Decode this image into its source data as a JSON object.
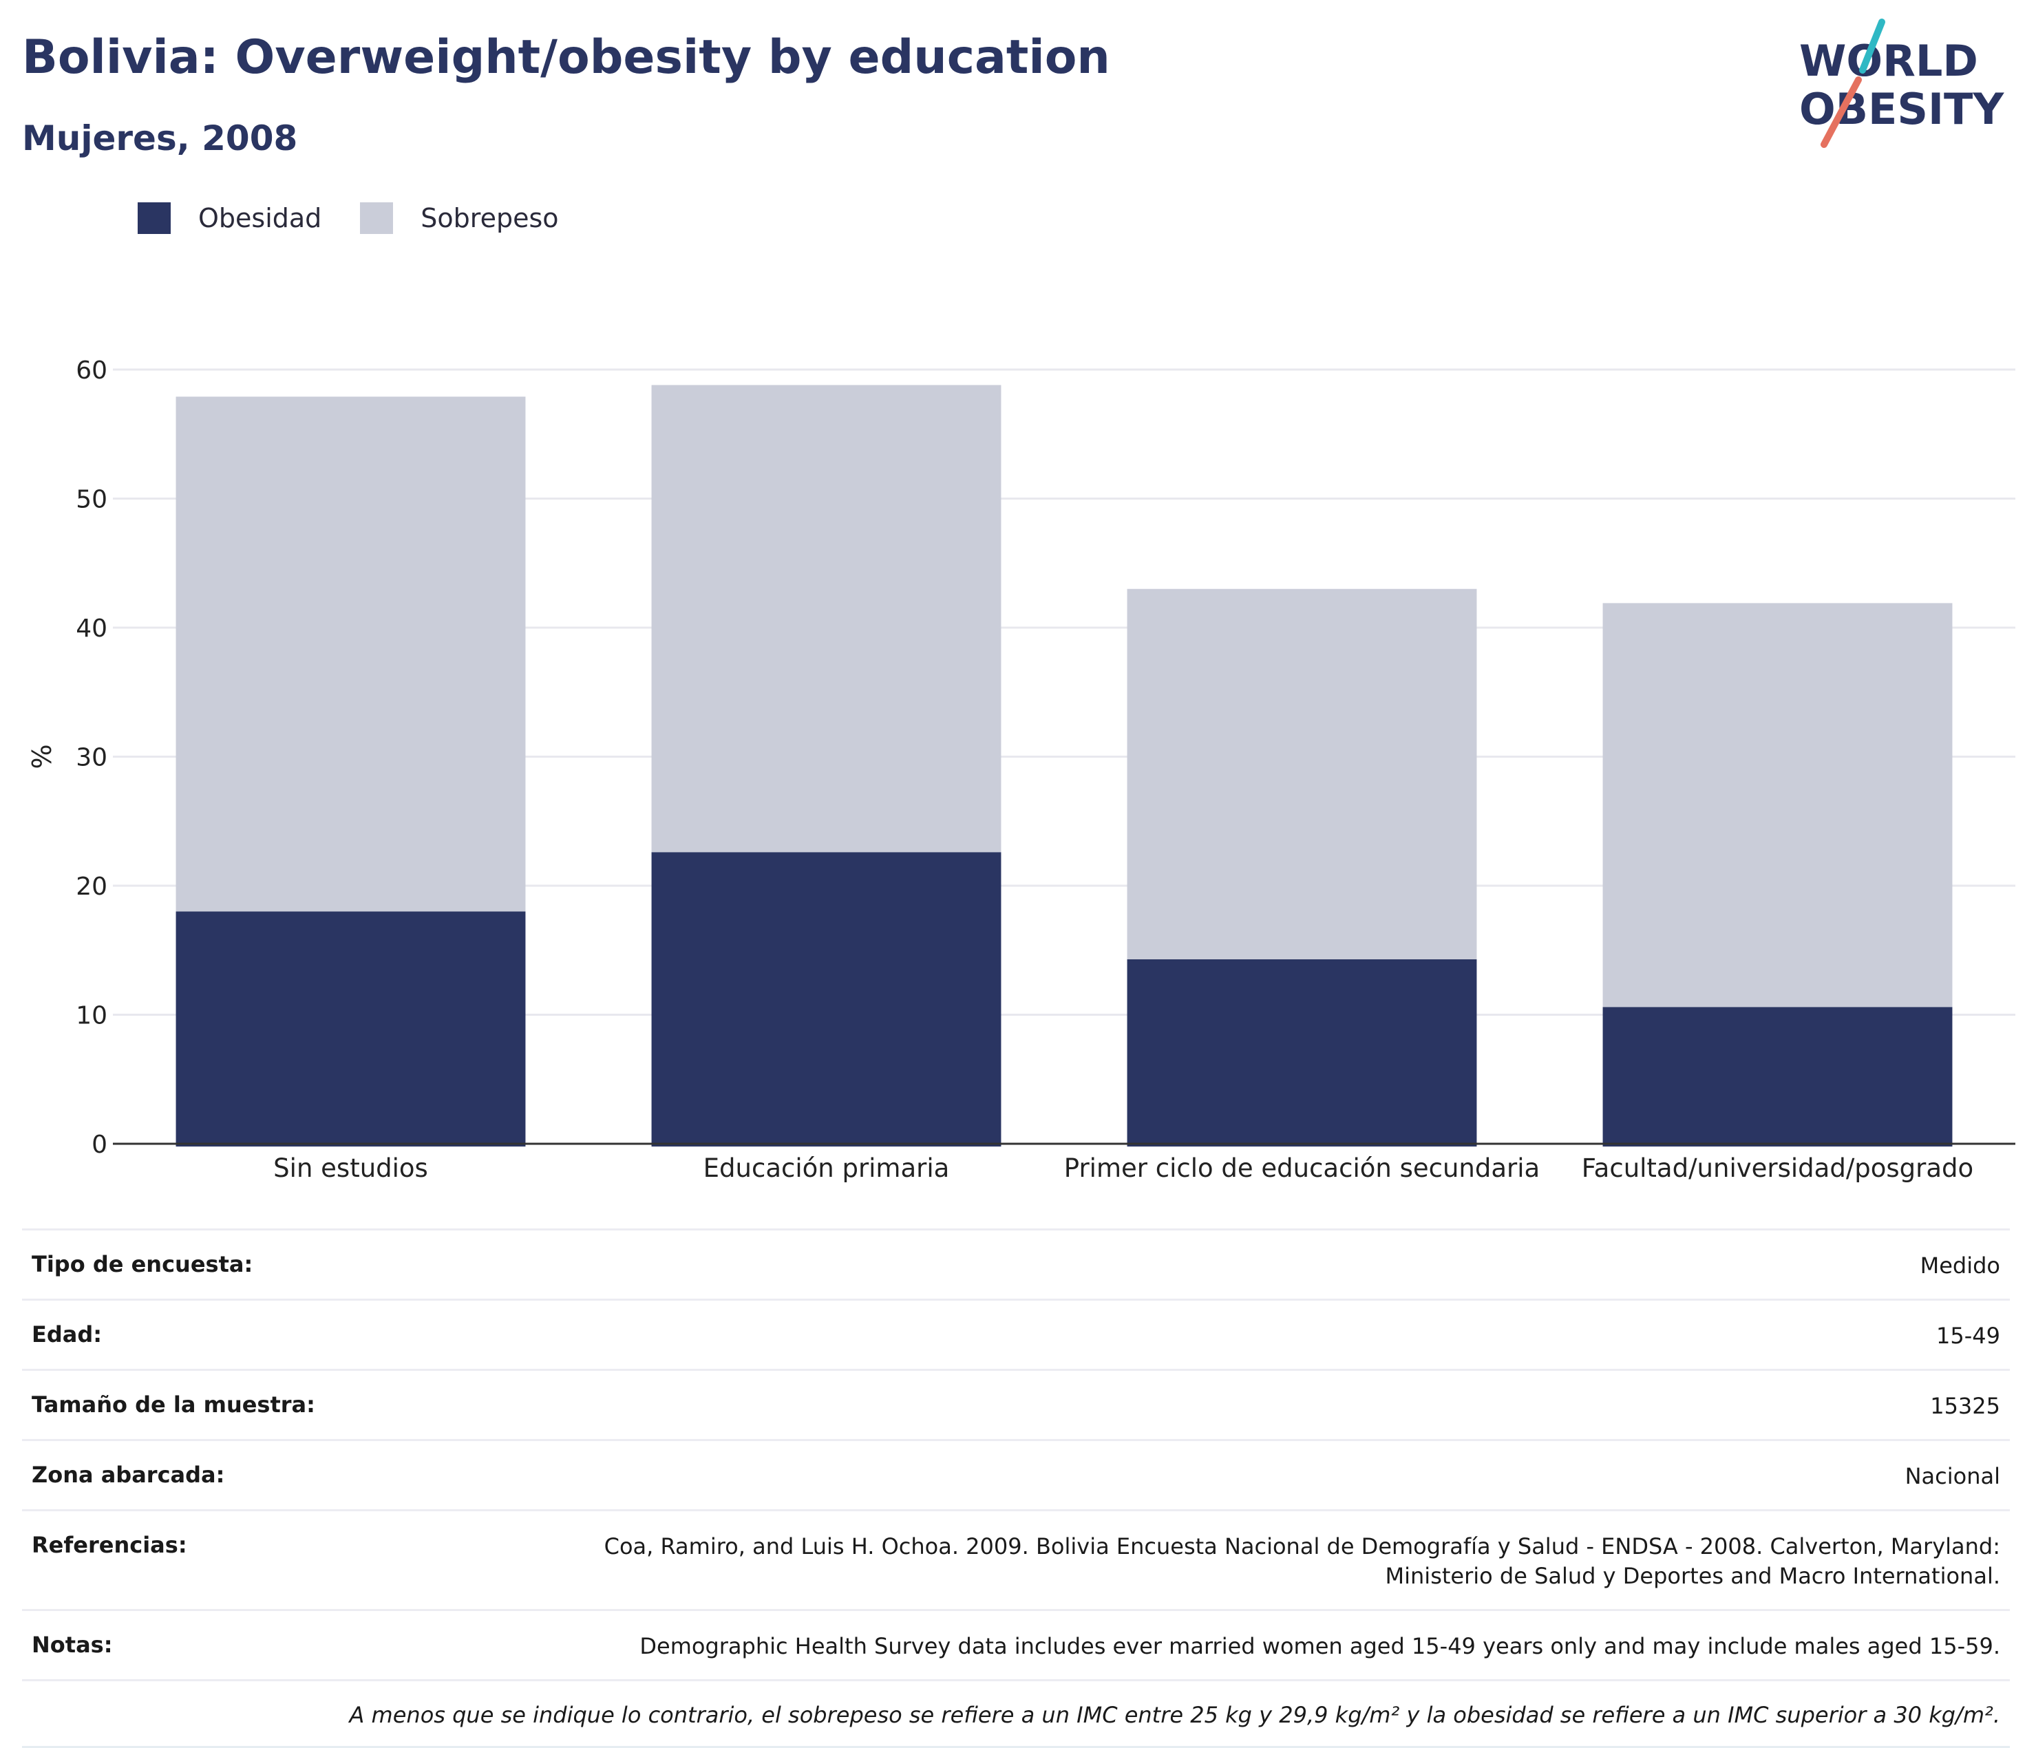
{
  "header": {
    "title": "Bolivia: Overweight/obesity by education",
    "subtitle": "Mujeres, 2008"
  },
  "logo": {
    "line1": "WORLD",
    "line2": "OBESITY"
  },
  "legend": [
    {
      "label": "Obesidad",
      "color": "#2a3562"
    },
    {
      "label": "Sobrepeso",
      "color": "#cacdd9"
    }
  ],
  "chart_data": {
    "type": "bar",
    "stacked": true,
    "categories": [
      "Sin estudios",
      "Educación primaria",
      "Primer ciclo de educación secundaria",
      "Facultad/universidad/posgrado"
    ],
    "series": [
      {
        "name": "Obesidad",
        "color": "#2a3562",
        "values": [
          18.0,
          22.6,
          14.3,
          10.6
        ]
      },
      {
        "name": "Sobrepeso",
        "color": "#cacdd9",
        "values": [
          39.9,
          36.2,
          28.7,
          31.3
        ]
      }
    ],
    "ylabel": "%",
    "ylim": [
      0,
      60
    ],
    "yticks": [
      0,
      10,
      20,
      30,
      40,
      50,
      60
    ],
    "grid": true
  },
  "info": [
    {
      "label": "Tipo de encuesta:",
      "value": "Medido"
    },
    {
      "label": "Edad:",
      "value": "15-49"
    },
    {
      "label": "Tamaño de la muestra:",
      "value": "15325"
    },
    {
      "label": "Zona abarcada:",
      "value": "Nacional"
    },
    {
      "label": "Referencias:",
      "value": "Coa, Ramiro, and Luis H. Ochoa. 2009. Bolivia Encuesta Nacional de Demografía y Salud - ENDSA - 2008. Calverton, Maryland: Ministerio de Salud y Deportes and Macro International."
    },
    {
      "label": "Notas:",
      "value": "Demographic Health Survey data includes ever married women aged 15-49 years only and may include males aged 15-59."
    }
  ],
  "footnote": "A menos que se indique lo contrario, el sobrepeso se refiere a un IMC entre 25 kg y 29,9 kg/m² y la obesidad se refiere a un IMC superior a 30 kg/m²."
}
